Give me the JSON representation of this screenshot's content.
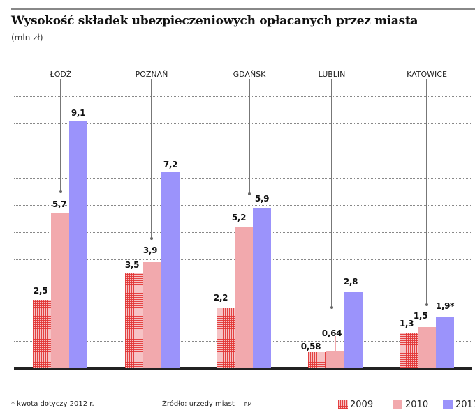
{
  "chart_data": {
    "type": "bar",
    "title": "Wysokość składek ubezpieczeniowych opłacanych przez miasta",
    "subtitle": "(mln zł)",
    "xlabel": "",
    "ylabel": "mln zł",
    "ylim": [
      0,
      10
    ],
    "grid": true,
    "legend_position": "bottom-right",
    "categories": [
      "ŁÓDŹ",
      "POZNAŃ",
      "GDAŃSK",
      "LUBLIN",
      "KATOWICE"
    ],
    "series": [
      {
        "name": "2009",
        "values": [
          2.5,
          3.5,
          2.2,
          0.58,
          1.3
        ],
        "labels": [
          "2,5",
          "3,5",
          "2,2",
          "0,58",
          "1,3"
        ],
        "color": "#e23434",
        "pattern": "grid"
      },
      {
        "name": "2010",
        "values": [
          5.7,
          3.9,
          5.2,
          0.64,
          1.5
        ],
        "labels": [
          "5,7",
          "3,9",
          "5,2",
          "0,64",
          "1,5"
        ],
        "color": "#f2a9ad"
      },
      {
        "name": "2011",
        "values": [
          9.1,
          7.2,
          5.9,
          2.8,
          1.9
        ],
        "labels": [
          "9,1",
          "7,2",
          "5,9",
          "2,8",
          "1,9*"
        ],
        "color": "#9b93fb"
      }
    ],
    "annotations": [
      "* kwota dotyczy 2012 r."
    ]
  },
  "header": {
    "title": "Wysokość składek ubezpieczeniowych opłacanych przez miasta",
    "subtitle": "(mln zł)"
  },
  "cities": [
    "ŁÓDŹ",
    "POZNAŃ",
    "GDAŃSK",
    "LUBLIN",
    "KATOWICE"
  ],
  "footer": {
    "note": "* kwota dotyczy 2012 r.",
    "source": "Źródło: urzędy miast",
    "author": "RM"
  },
  "legend": [
    {
      "label": "2009"
    },
    {
      "label": "2010"
    },
    {
      "label": "2011"
    }
  ]
}
